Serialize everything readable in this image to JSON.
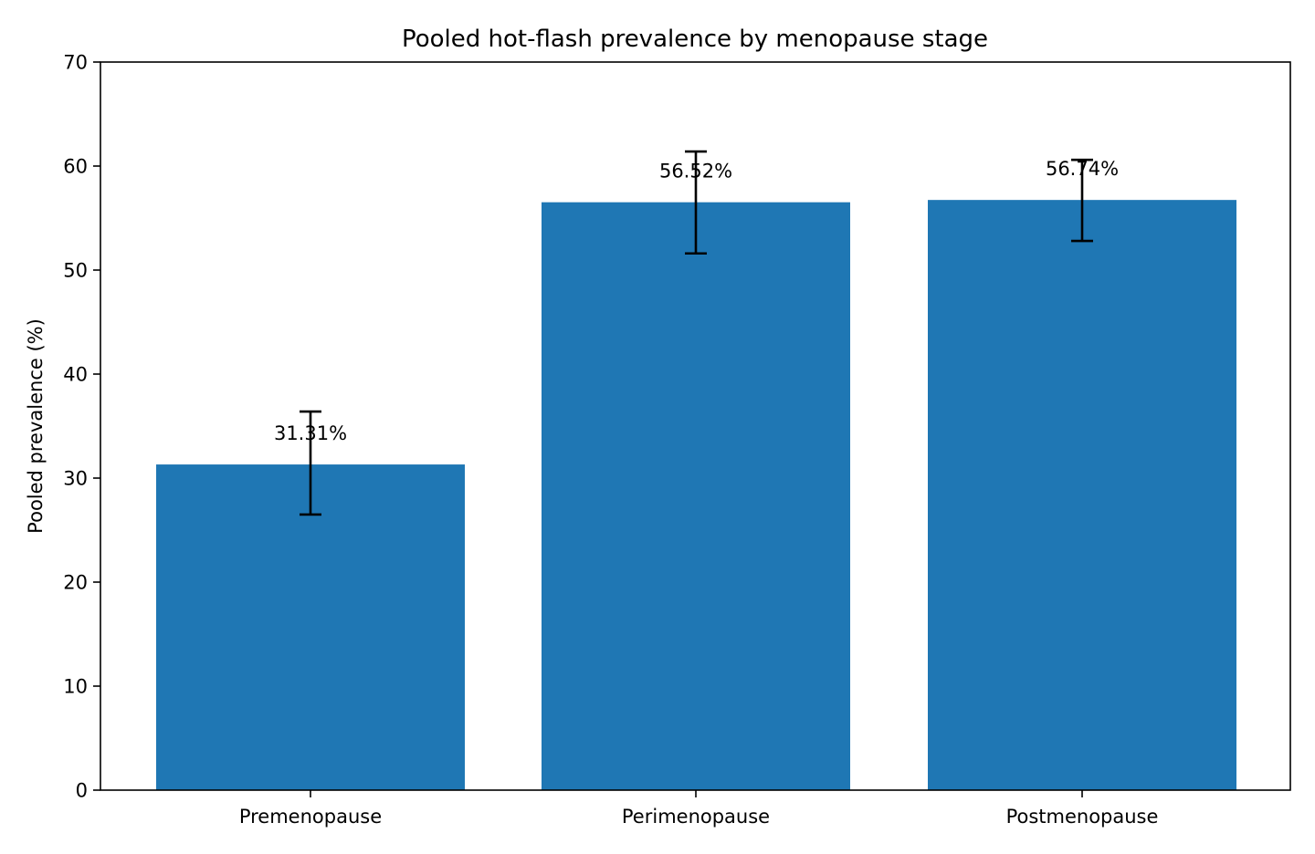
{
  "chart_data": {
    "type": "bar",
    "title": "Pooled hot-flash prevalence by menopause stage",
    "xlabel": "",
    "ylabel": "Pooled prevalence (%)",
    "ylim": [
      0,
      70
    ],
    "yticks": [
      0,
      10,
      20,
      30,
      40,
      50,
      60,
      70
    ],
    "categories": [
      "Premenopause",
      "Perimenopause",
      "Postmenopause"
    ],
    "values": [
      31.31,
      56.52,
      56.74
    ],
    "ci_low": [
      26.5,
      51.6,
      52.8
    ],
    "ci_high": [
      36.4,
      61.4,
      60.6
    ],
    "data_labels": [
      "31.31%",
      "56.52%",
      "56.74%"
    ],
    "bar_color": "#1f77b4",
    "grid": false,
    "legend": "none"
  }
}
